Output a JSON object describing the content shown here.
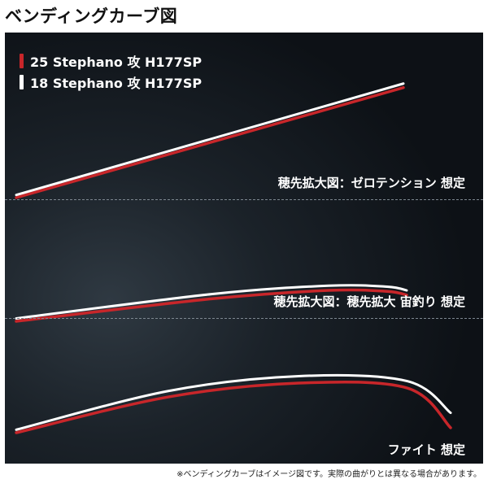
{
  "page": {
    "title": "ベンディングカーブ図",
    "footnote": "※ベンディングカーブはイメージ図です。実際の曲がりとは異なる場合があります。"
  },
  "colors": {
    "panel_background": "#151b21",
    "series_25": "#c8262a",
    "series_18": "#ffffff",
    "divider": "#7d8790"
  },
  "legend": [
    {
      "label": "25 Stephano 攻 H177SP",
      "color": "#c8262a"
    },
    {
      "label": "18 Stephano 攻 H177SP",
      "color": "#ffffff"
    }
  ],
  "chart_data": [
    {
      "type": "line",
      "title": "",
      "label": "穂先拡大図：ゼロテンション 想定",
      "series": [
        {
          "name": "25 Stephano 攻 H177SP",
          "color": "#c8262a",
          "points": [
            [
              0,
              0
            ],
            [
              1,
              0.82
            ]
          ]
        },
        {
          "name": "18 Stephano 攻 H177SP",
          "color": "#ffffff",
          "points": [
            [
              0,
              0.02
            ],
            [
              1,
              0.85
            ]
          ]
        }
      ]
    },
    {
      "type": "line",
      "title": "",
      "label": "穂先拡大図：穂先拡大 宙釣り 想定",
      "series": [
        {
          "name": "25 Stephano 攻 H177SP",
          "color": "#c8262a",
          "points": [
            [
              0,
              0
            ],
            [
              0.5,
              0.24
            ],
            [
              0.8,
              0.33
            ],
            [
              0.95,
              0.32
            ],
            [
              1,
              0.28
            ]
          ]
        },
        {
          "name": "18 Stephano 攻 H177SP",
          "color": "#ffffff",
          "points": [
            [
              0,
              0.03
            ],
            [
              0.5,
              0.29
            ],
            [
              0.8,
              0.38
            ],
            [
              0.95,
              0.37
            ],
            [
              1,
              0.33
            ]
          ]
        }
      ]
    },
    {
      "type": "line",
      "title": "",
      "label": "ファイト 想定",
      "series": [
        {
          "name": "25 Stephano 攻 H177SP",
          "color": "#c8262a",
          "points": [
            [
              0,
              0
            ],
            [
              0.35,
              0.36
            ],
            [
              0.65,
              0.5
            ],
            [
              0.9,
              0.45
            ],
            [
              1,
              0.05
            ]
          ]
        },
        {
          "name": "18 Stephano 攻 H177SP",
          "color": "#ffffff",
          "points": [
            [
              0,
              0.03
            ],
            [
              0.35,
              0.42
            ],
            [
              0.65,
              0.57
            ],
            [
              0.9,
              0.52
            ],
            [
              1,
              0.2
            ]
          ]
        }
      ]
    }
  ]
}
